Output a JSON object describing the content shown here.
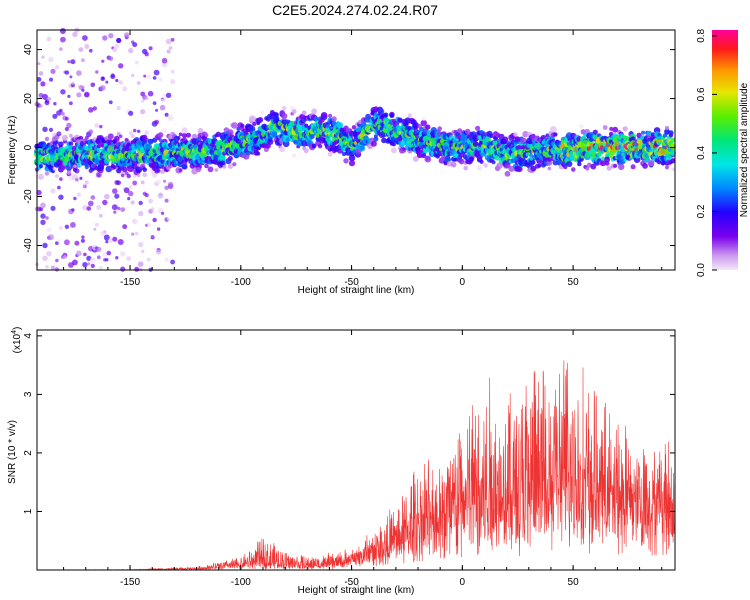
{
  "title": "C2E5.2024.274.02.24.R07",
  "chart_data": [
    {
      "type": "heatmap",
      "xlabel": "Height of straight line (km)",
      "ylabel": "Frequency (Hz)",
      "xlim": [
        -192,
        96
      ],
      "ylim": [
        -50,
        48
      ],
      "xticks": [
        -150,
        -100,
        -50,
        0,
        50
      ],
      "yticks": [
        -40,
        -20,
        0,
        20,
        40
      ],
      "colorbar": {
        "label": "Normalized spectral amplitude",
        "range": [
          0.0,
          0.82
        ],
        "ticks": [
          "0.0",
          "0.2",
          "0.4",
          "0.6",
          "0.8"
        ],
        "tick_values": [
          0.0,
          0.2,
          0.4,
          0.6,
          0.8
        ]
      },
      "ridge": {
        "x": [
          -192,
          -170,
          -150,
          -130,
          -110,
          -100,
          -90,
          -85,
          -75,
          -65,
          -55,
          -50,
          -45,
          -38,
          -30,
          -20,
          -10,
          0,
          10,
          20,
          30,
          40,
          50,
          60,
          70,
          80,
          96
        ],
        "freq": [
          -4,
          -3,
          -3,
          -2,
          -1,
          2,
          5,
          9,
          6,
          7,
          5,
          0,
          5,
          10,
          7,
          3,
          1,
          0,
          1,
          -3,
          -2,
          -1,
          -1,
          0,
          0,
          0,
          0
        ]
      }
    },
    {
      "type": "line",
      "xlabel": "Height of straight line (km)",
      "ylabel": "SNR (10 * v/v)",
      "y_scale_label": "(x10",
      "y_scale_exp": "4",
      "y_scale_close": ")",
      "xlim": [
        -192,
        96
      ],
      "ylim": [
        0,
        4.1
      ],
      "xticks": [
        -150,
        -100,
        -50,
        0,
        50
      ],
      "yticks": [
        1,
        2,
        3,
        4
      ],
      "series": [
        {
          "color": "#ee3333",
          "envelope": {
            "x": [
              -192,
              -150,
              -120,
              -110,
              -100,
              -95,
              -90,
              -80,
              -70,
              -60,
              -50,
              -40,
              -30,
              -20,
              -10,
              0,
              10,
              20,
              30,
              40,
              50,
              60,
              70,
              80,
              96
            ],
            "base": [
              0.0,
              0.0,
              0.02,
              0.05,
              0.08,
              0.1,
              0.1,
              0.08,
              0.06,
              0.08,
              0.15,
              0.3,
              0.5,
              0.8,
              0.9,
              1.1,
              1.2,
              1.3,
              1.4,
              1.5,
              1.6,
              1.6,
              1.5,
              1.5,
              1.5
            ],
            "peak": [
              0.0,
              0.01,
              0.06,
              0.15,
              0.25,
              0.4,
              0.6,
              0.35,
              0.25,
              0.3,
              0.4,
              0.8,
              1.2,
              2.0,
              2.3,
              2.9,
              3.5,
              3.3,
              3.7,
              3.9,
              4.05,
              3.2,
              2.7,
              2.5,
              2.3
            ]
          }
        }
      ]
    }
  ]
}
